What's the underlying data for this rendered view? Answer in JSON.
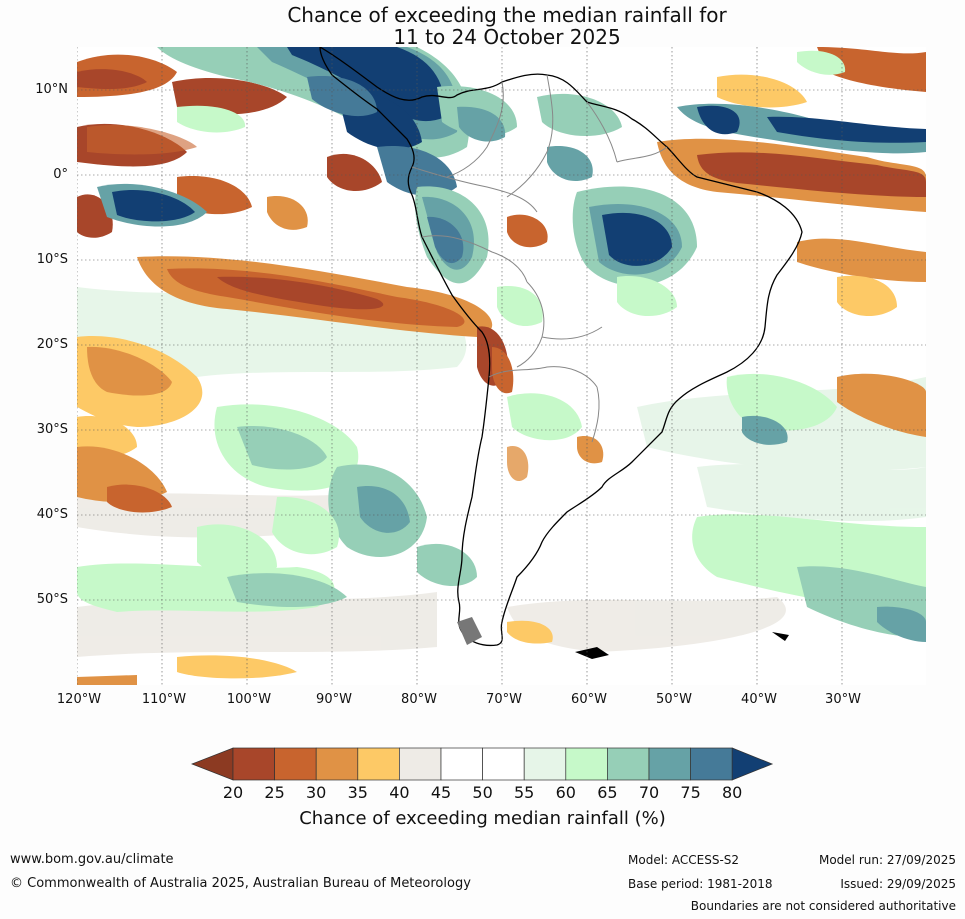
{
  "title": {
    "line1": "Chance of exceeding the median rainfall for",
    "line2": "11 to 24 October 2025"
  },
  "map": {
    "lat_labels": [
      "10°N",
      "0°",
      "10°S",
      "20°S",
      "30°S",
      "40°S",
      "50°S"
    ],
    "lon_labels": [
      "120°W",
      "110°W",
      "100°W",
      "90°W",
      "80°W",
      "70°W",
      "60°W",
      "50°W",
      "40°W",
      "30°W"
    ]
  },
  "colorbar": {
    "title": "Chance of exceeding median rainfall (%)",
    "ticks": [
      "20",
      "25",
      "30",
      "35",
      "40",
      "45",
      "50",
      "55",
      "60",
      "65",
      "70",
      "75",
      "80"
    ],
    "colors": {
      "under": "#8c3a22",
      "bins": [
        "#a8462a",
        "#c8642e",
        "#e09245",
        "#fdc966",
        "#eeebe6",
        "#ffffff",
        "#ffffff",
        "#e6f5e8",
        "#c6f9c9",
        "#96cfb7",
        "#66a2a6",
        "#457a98"
      ],
      "over": "#123f73"
    }
  },
  "footer": {
    "website": "www.bom.gov.au/climate",
    "copyright": "© Commonwealth of Australia 2025, Australian Bureau of Meteorology",
    "model": "Model: ACCESS-S2",
    "base_period": "Base period: 1981-2018",
    "model_run": "Model run: 27/09/2025",
    "issued": "Issued: 29/09/2025",
    "disclaimer": "Boundaries are not considered authoritative"
  }
}
